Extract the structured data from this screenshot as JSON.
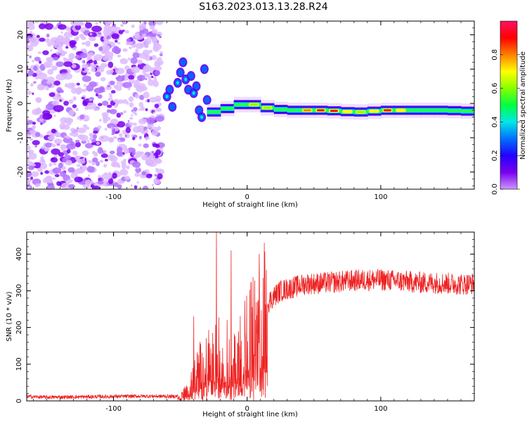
{
  "figure": {
    "title": "S163.2023.013.13.28.R24"
  },
  "colors": {
    "snr_line": "#ee2222",
    "background": "#ffffff",
    "axis": "#000000",
    "colormap": [
      "#cc99ff",
      "#7a00ee",
      "#2200ff",
      "#0070ff",
      "#00e8e8",
      "#00ff40",
      "#88ff00",
      "#ffff00",
      "#ff8000",
      "#ff0000",
      "#ff1060"
    ]
  },
  "chart_data": [
    {
      "type": "heatmap",
      "title": "",
      "xlabel": "Height of straight line (km)",
      "ylabel": "Frequency (Hz)",
      "xlim": [
        -165,
        170
      ],
      "ylim": [
        -25,
        24
      ],
      "xticks": [
        -100,
        0,
        100
      ],
      "yticks": [
        20,
        10,
        0,
        -10,
        -20
      ],
      "colorbar": {
        "label": "Normalized spectral amplitude",
        "range": [
          0.0,
          1.0
        ],
        "ticks": [
          0.0,
          0.2,
          0.4,
          0.6,
          0.8
        ]
      },
      "noise_region_x": [
        -165,
        -64
      ],
      "ridge": {
        "x": [
          -30,
          -20,
          -10,
          0,
          10,
          20,
          30,
          40,
          50,
          60,
          70,
          80,
          90,
          100,
          110,
          120,
          130,
          140,
          150,
          160,
          170
        ],
        "y": [
          -3,
          -2,
          -1,
          0.3,
          -1,
          -1.5,
          -2,
          -2,
          -2,
          -2,
          -2.3,
          -2.5,
          -2.5,
          -2,
          -2,
          -2,
          -2,
          -2,
          -2,
          -2.2,
          -2.3
        ],
        "amplitude": [
          0.25,
          0.5,
          0.5,
          0.55,
          0.65,
          0.5,
          0.45,
          0.6,
          0.95,
          0.9,
          0.8,
          0.6,
          0.6,
          0.85,
          0.85,
          0.6,
          0.45,
          0.45,
          0.45,
          0.45,
          0.45
        ]
      },
      "scattered_blobs": [
        {
          "x": -60,
          "y": 2
        },
        {
          "x": -58,
          "y": 4
        },
        {
          "x": -56,
          "y": -1
        },
        {
          "x": -52,
          "y": 6
        },
        {
          "x": -50,
          "y": 9
        },
        {
          "x": -48,
          "y": 12
        },
        {
          "x": -46,
          "y": 7
        },
        {
          "x": -44,
          "y": 4
        },
        {
          "x": -42,
          "y": 8
        },
        {
          "x": -40,
          "y": 3
        },
        {
          "x": -38,
          "y": 5
        },
        {
          "x": -36,
          "y": -2
        },
        {
          "x": -34,
          "y": -4
        },
        {
          "x": -32,
          "y": 10
        },
        {
          "x": -30,
          "y": 1
        }
      ]
    },
    {
      "type": "line",
      "title": "",
      "xlabel": "Height of straight line (km)",
      "ylabel": "SNR (10 * v/v)",
      "xlim": [
        -165,
        170
      ],
      "ylim": [
        0,
        460
      ],
      "xticks": [
        -100,
        0,
        100
      ],
      "yticks": [
        0,
        100,
        200,
        300,
        400
      ],
      "series": [
        {
          "x": [
            -165,
            -150,
            -125,
            -100,
            -75,
            -55,
            -50,
            -45,
            -40,
            -35,
            -30,
            -25,
            -22,
            -20,
            -15,
            -10,
            -5,
            0,
            5,
            10,
            15,
            20,
            25,
            30,
            35,
            40,
            45,
            50,
            60,
            70,
            80,
            90,
            100,
            110,
            120,
            130,
            140,
            150,
            160,
            170
          ],
          "values": [
            12,
            10,
            11,
            12,
            13,
            12,
            14,
            28,
            60,
            95,
            110,
            125,
            135,
            140,
            130,
            120,
            150,
            175,
            200,
            240,
            265,
            285,
            300,
            305,
            310,
            315,
            320,
            320,
            322,
            325,
            328,
            330,
            330,
            328,
            325,
            322,
            322,
            320,
            318,
            320
          ]
        }
      ],
      "spikes": [
        {
          "x": -40,
          "y": 230
        },
        {
          "x": -23,
          "y": 460
        },
        {
          "x": -12,
          "y": 410
        }
      ]
    }
  ]
}
